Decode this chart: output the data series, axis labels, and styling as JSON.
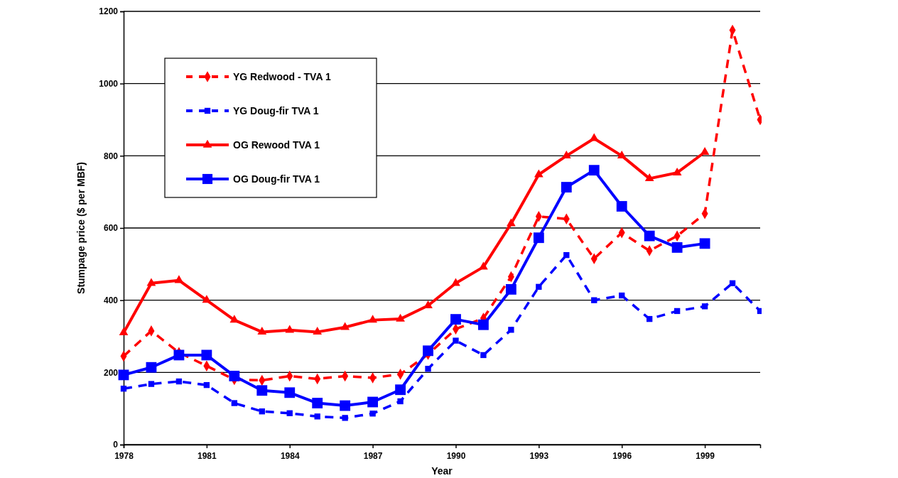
{
  "chart_data": {
    "type": "line",
    "xlabel": "Year",
    "ylabel": "Stumpage price ($ per MBF)",
    "x": [
      1978,
      1979,
      1980,
      1981,
      1982,
      1983,
      1984,
      1985,
      1986,
      1987,
      1988,
      1989,
      1990,
      1991,
      1992,
      1993,
      1994,
      1995,
      1996,
      1997,
      1998,
      1999,
      2000,
      2001
    ],
    "xlim": [
      1978,
      2001
    ],
    "xticks": [
      1978,
      1981,
      1984,
      1987,
      1990,
      1993,
      1996,
      1999
    ],
    "ylim": [
      0,
      1200
    ],
    "yticks": [
      0,
      200,
      400,
      600,
      800,
      1000,
      1200
    ],
    "grid": "y",
    "legend": "top left",
    "series": [
      {
        "name": "YG Redwood - TVA 1",
        "color": "#ff0000",
        "marker": "diamond",
        "line_style": "dashed",
        "values": [
          245,
          315,
          255,
          218,
          180,
          178,
          190,
          182,
          190,
          185,
          195,
          250,
          320,
          350,
          465,
          632,
          625,
          515,
          587,
          537,
          578,
          640,
          1148,
          900
        ]
      },
      {
        "name": "YG Doug-fir TVA 1",
        "color": "#0000ff",
        "marker": "square",
        "line_style": "dashed",
        "values": [
          155,
          168,
          175,
          165,
          115,
          92,
          87,
          78,
          74,
          86,
          120,
          210,
          288,
          248,
          318,
          437,
          525,
          400,
          413,
          348,
          370,
          383,
          447,
          370
        ]
      },
      {
        "name": "OG Rewood TVA 1",
        "color": "#ff0000",
        "marker": "triangle",
        "line_style": "solid",
        "values": [
          310,
          447,
          455,
          400,
          345,
          312,
          317,
          312,
          325,
          345,
          348,
          385,
          447,
          492,
          612,
          748,
          800,
          848,
          800,
          737,
          753,
          810,
          null,
          null
        ]
      },
      {
        "name": "OG Doug-fir TVA 1",
        "color": "#0000ff",
        "marker": "square",
        "line_style": "solid",
        "values": [
          193,
          214,
          248,
          248,
          190,
          150,
          144,
          115,
          108,
          118,
          152,
          260,
          347,
          332,
          430,
          573,
          713,
          760,
          660,
          578,
          546,
          557,
          null,
          null
        ]
      }
    ]
  }
}
